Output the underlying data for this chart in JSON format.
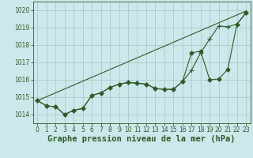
{
  "title": "Graphe pression niveau de la mer (hPa)",
  "background_color": "#cce8eb",
  "grid_color": "#aacccc",
  "line_color": "#2d5a27",
  "xlim": [
    -0.5,
    23.5
  ],
  "ylim": [
    1013.5,
    1020.5
  ],
  "xticks": [
    0,
    1,
    2,
    3,
    4,
    5,
    6,
    7,
    8,
    9,
    10,
    11,
    12,
    13,
    14,
    15,
    16,
    17,
    18,
    19,
    20,
    21,
    22,
    23
  ],
  "yticks": [
    1014,
    1015,
    1016,
    1017,
    1018,
    1019,
    1020
  ],
  "series1_x": [
    0,
    1,
    2,
    3,
    4,
    5,
    6,
    7,
    8,
    9,
    10,
    11,
    12,
    13,
    14,
    15,
    16,
    17,
    18,
    19,
    20,
    21,
    22,
    23
  ],
  "series1_y": [
    1014.8,
    1014.5,
    1014.45,
    1014.0,
    1014.25,
    1014.35,
    1015.1,
    1015.25,
    1015.55,
    1015.75,
    1015.85,
    1015.8,
    1015.75,
    1015.5,
    1015.45,
    1015.45,
    1015.9,
    1016.55,
    1017.55,
    1018.35,
    1019.1,
    1019.05,
    1019.2,
    1019.85
  ],
  "series2_x": [
    0,
    1,
    2,
    3,
    4,
    5,
    6,
    7,
    8,
    9,
    10,
    11,
    12,
    13,
    14,
    15,
    16,
    17,
    18,
    19,
    20,
    21,
    22,
    23
  ],
  "series2_y": [
    1014.8,
    1014.5,
    1014.45,
    1014.0,
    1014.25,
    1014.35,
    1015.1,
    1015.25,
    1015.55,
    1015.75,
    1015.85,
    1015.8,
    1015.75,
    1015.5,
    1015.45,
    1015.45,
    1015.9,
    1017.55,
    1017.65,
    1016.0,
    1016.05,
    1016.6,
    1019.2,
    1019.85
  ],
  "series3_x": [
    0,
    23
  ],
  "series3_y": [
    1014.8,
    1019.95
  ],
  "title_fontsize": 7.5,
  "tick_fontsize": 5.5
}
